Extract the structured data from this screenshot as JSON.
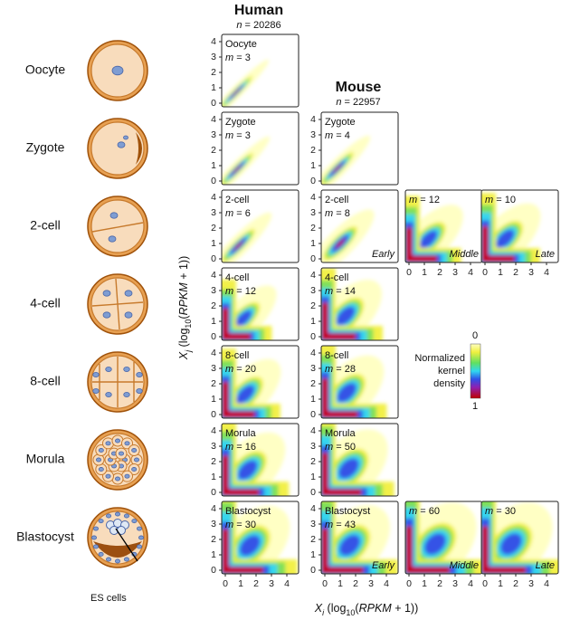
{
  "headers": {
    "human": {
      "title": "Human",
      "var": "n",
      "eq": " = 20286"
    },
    "mouse": {
      "title": "Mouse",
      "var": "n",
      "eq": " = 22957"
    }
  },
  "m_var": "m",
  "stages": [
    "Oocyte",
    "Zygote",
    "2-cell",
    "4-cell",
    "8-cell",
    "Morula",
    "Blastocyst"
  ],
  "es_cells": "ES cells",
  "rows": [
    {
      "human": {
        "label": "Oocyte",
        "m": " = 3"
      }
    },
    {
      "human": {
        "label": "Zygote",
        "m": " = 3"
      },
      "mouse": [
        {
          "label": "Zygote",
          "m": " = 4"
        }
      ]
    },
    {
      "human": {
        "label": "2-cell",
        "m": " = 6"
      },
      "mouse": [
        {
          "label": "2-cell",
          "m": " = 8",
          "tag": "Early"
        },
        {
          "m": " = 12",
          "tag": "Middle"
        },
        {
          "m": " = 10",
          "tag": "Late"
        }
      ]
    },
    {
      "human": {
        "label": "4-cell",
        "m": " = 12"
      },
      "mouse": [
        {
          "label": "4-cell",
          "m": " = 14"
        }
      ]
    },
    {
      "human": {
        "label": "8-cell",
        "m": " = 20"
      },
      "mouse": [
        {
          "label": "8-cell",
          "m": " = 28"
        }
      ]
    },
    {
      "human": {
        "label": "Morula",
        "m": " = 16"
      },
      "mouse": [
        {
          "label": "Morula",
          "m": " = 50"
        }
      ]
    },
    {
      "human": {
        "label": "Blastocyst",
        "m": " = 30"
      },
      "mouse": [
        {
          "label": "Blastocyst",
          "m": " = 43",
          "tag": "Early"
        },
        {
          "m": " = 60",
          "tag": "Middle"
        },
        {
          "m": " = 30",
          "tag": "Late"
        }
      ]
    }
  ],
  "ticks": [
    0,
    1,
    2,
    3,
    4
  ],
  "x_label": [
    "X",
    "i",
    " (log",
    "10",
    "(",
    "RPKM",
    " + 1))"
  ],
  "y_label": [
    "X",
    "j",
    " (log",
    "10",
    "(",
    "RPKM",
    " + 1))"
  ],
  "colorbar": {
    "lines": [
      "Normalized",
      "kernel",
      "density"
    ],
    "top": 0,
    "bottom": 1
  }
}
